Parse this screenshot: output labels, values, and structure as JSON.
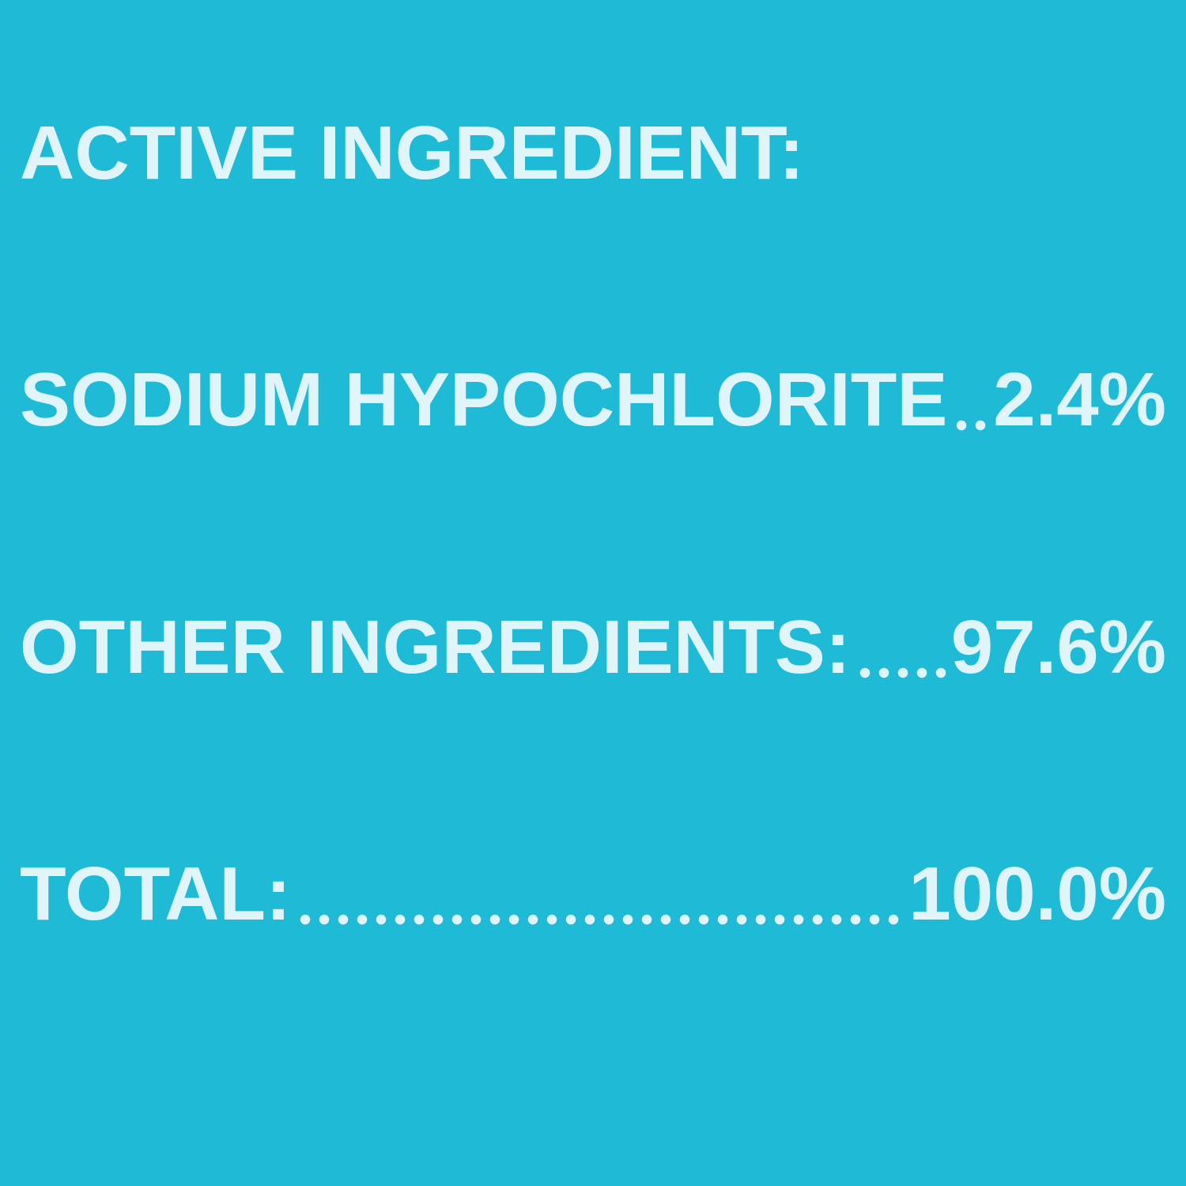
{
  "colors": {
    "background": "#1fbad5",
    "text": "#dff5fa"
  },
  "heading": "ACTIVE INGREDIENT:",
  "rows": [
    {
      "label": "SODIUM HYPOCHLORITE",
      "value": "2.4%"
    },
    {
      "label": "OTHER INGREDIENTS:",
      "value": "97.6%"
    },
    {
      "label": "TOTAL:",
      "value": "100.0%"
    }
  ]
}
